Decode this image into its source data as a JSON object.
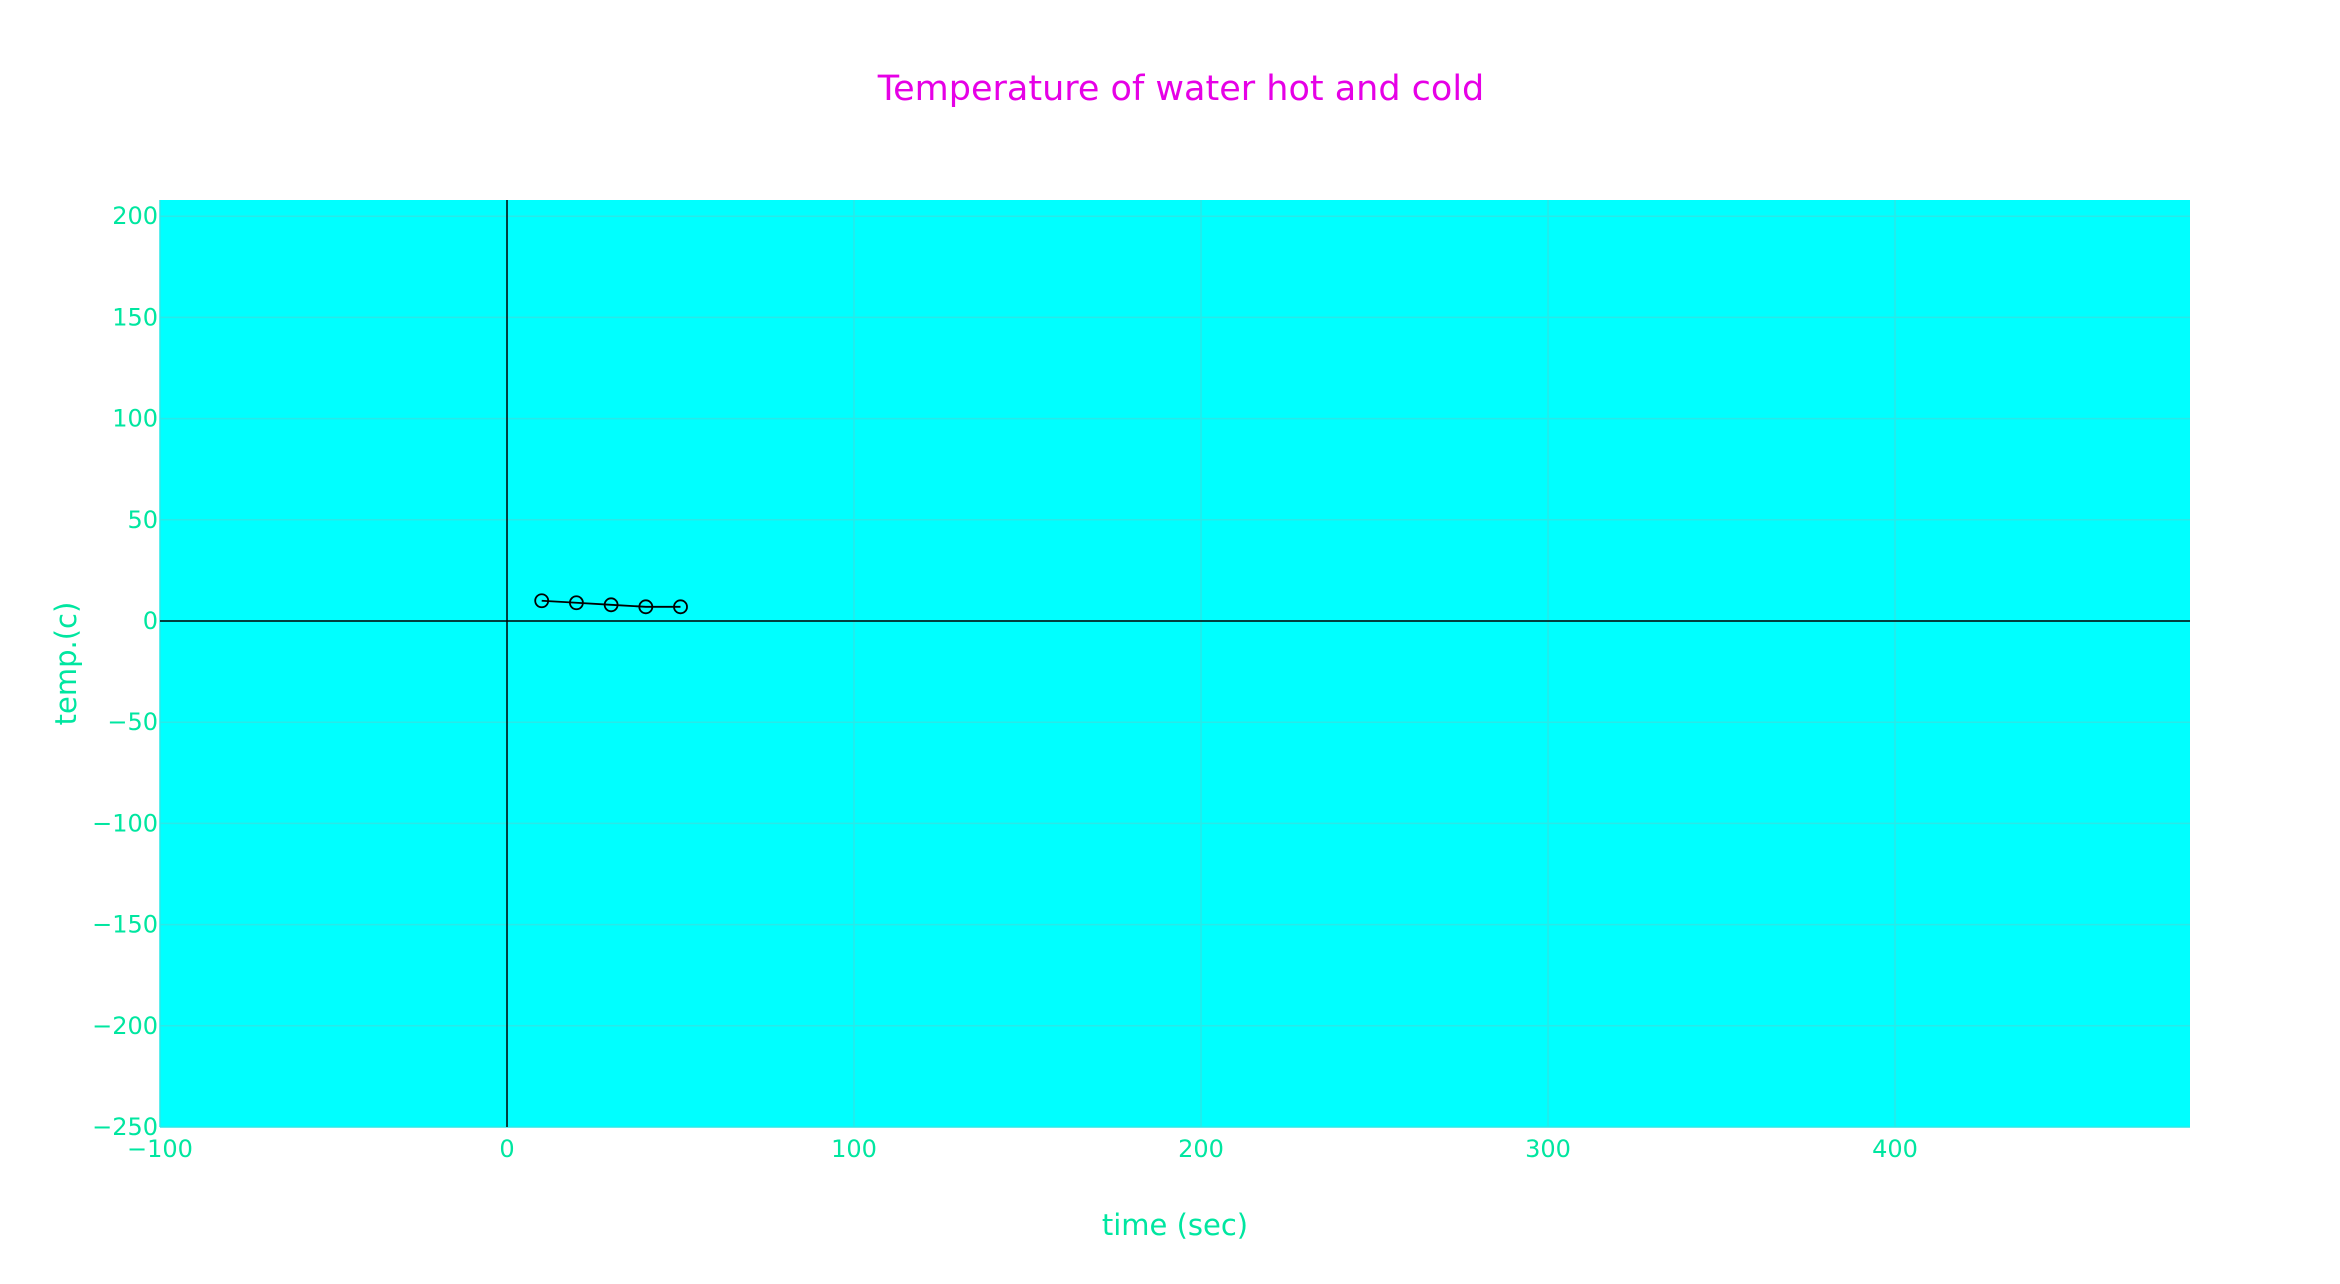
{
  "chart_data": {
    "type": "line",
    "title": "Temperature of water hot and cold",
    "xlabel": "time (sec)",
    "ylabel": "temp.(c)",
    "xlim": [
      -100,
      485
    ],
    "ylim": [
      -250,
      208
    ],
    "x_ticks": [
      -100,
      0,
      100,
      200,
      300,
      400
    ],
    "x_tick_labels": [
      "−100",
      "0",
      "100",
      "200",
      "300",
      "400"
    ],
    "y_ticks": [
      -250,
      -200,
      -150,
      -100,
      -50,
      0,
      50,
      100,
      150,
      200
    ],
    "y_tick_labels": [
      "−250",
      "−200",
      "−150",
      "−100",
      "−50",
      "0",
      "50",
      "100",
      "150",
      "200"
    ],
    "grid": true,
    "legend": "none",
    "series": [
      {
        "mode": "lines+markers",
        "marker": "open-circle",
        "x": [
          10,
          20,
          30,
          40,
          50
        ],
        "y": [
          10,
          9,
          8,
          7,
          7
        ]
      }
    ],
    "colors": {
      "title": "#e600e6",
      "axis_text": "#00e6a0",
      "plot_background": "#00ffff",
      "paper_background": "#ffffff",
      "grid": "#2ae8e8",
      "zeroline": "#000000",
      "series_line": "#000000"
    }
  }
}
